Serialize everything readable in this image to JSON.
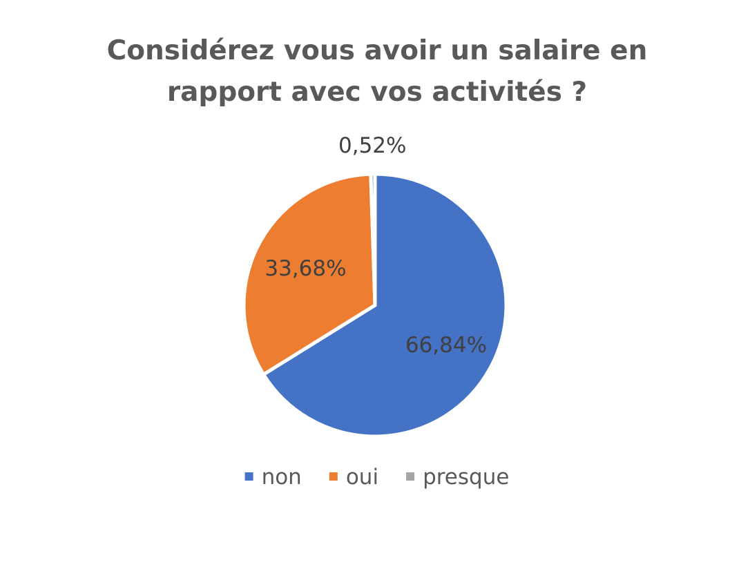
{
  "chart_data": {
    "type": "pie",
    "title_lines": [
      "Considérez vous avoir un salaire en",
      "rapport avec vos activités ?"
    ],
    "categories": [
      "non",
      "oui",
      "presque"
    ],
    "values": [
      66.84,
      33.68,
      0.52
    ],
    "labels": [
      "66,84%",
      "33,68%",
      "0,52%"
    ],
    "colors": [
      "#4472C4",
      "#ED7D31",
      "#A5A5A5"
    ],
    "legend": {
      "position": "bottom",
      "entries": [
        "non",
        "oui",
        "presque"
      ]
    }
  }
}
